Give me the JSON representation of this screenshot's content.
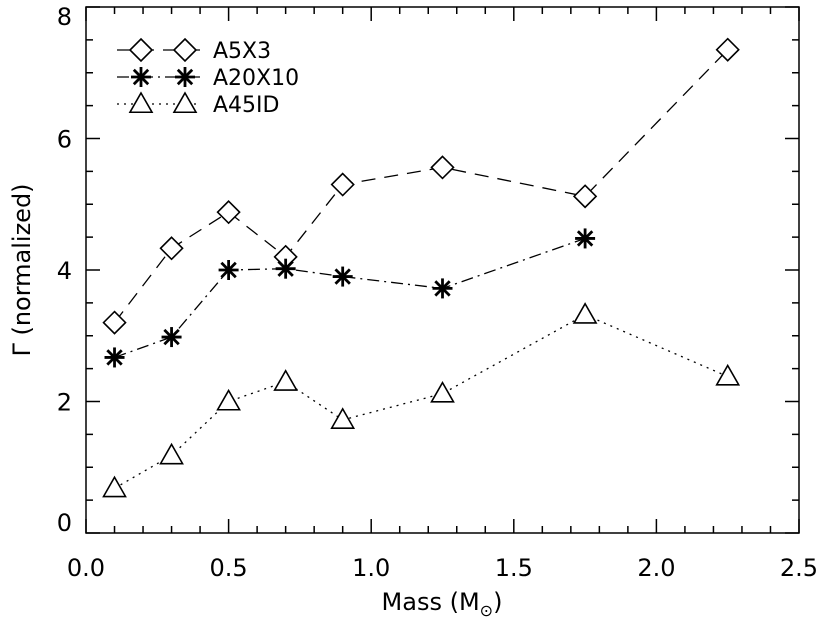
{
  "chart_data": {
    "type": "line",
    "xlabel": "Mass (M",
    "xlabel_subscript": "⊙",
    "xlabel_close": ")",
    "ylabel": "Γ (normalized)",
    "xlim": [
      0.0,
      2.5
    ],
    "ylim": [
      0,
      8
    ],
    "x_major_ticks": [
      0.0,
      0.5,
      1.0,
      1.5,
      2.0,
      2.5
    ],
    "x_tick_labels": [
      "0.0",
      "0.5",
      "1.0",
      "1.5",
      "2.0",
      "2.5"
    ],
    "y_major_ticks": [
      0,
      2,
      4,
      6,
      8
    ],
    "y_tick_labels": [
      "0",
      "2",
      "4",
      "6",
      "8"
    ],
    "grid": false,
    "legend_position": "top-left",
    "series": [
      {
        "name": "A5X3",
        "marker": "diamond",
        "line_style": "dashed",
        "x": [
          0.1,
          0.3,
          0.5,
          0.7,
          0.9,
          1.25,
          1.75,
          2.25
        ],
        "y": [
          3.2,
          4.33,
          4.88,
          4.2,
          5.3,
          5.56,
          5.12,
          7.35
        ]
      },
      {
        "name": "A20X10",
        "marker": "asterisk",
        "line_style": "dash-dot",
        "x": [
          0.1,
          0.3,
          0.5,
          0.7,
          0.9,
          1.25,
          1.75
        ],
        "y": [
          2.67,
          2.98,
          4.0,
          4.02,
          3.9,
          3.72,
          4.48
        ]
      },
      {
        "name": "A45ID",
        "marker": "triangle",
        "line_style": "dotted",
        "x": [
          0.1,
          0.3,
          0.5,
          0.7,
          0.9,
          1.25,
          1.75,
          2.25
        ],
        "y": [
          0.68,
          1.18,
          2.0,
          2.3,
          1.72,
          2.12,
          3.32,
          2.38
        ]
      }
    ]
  }
}
